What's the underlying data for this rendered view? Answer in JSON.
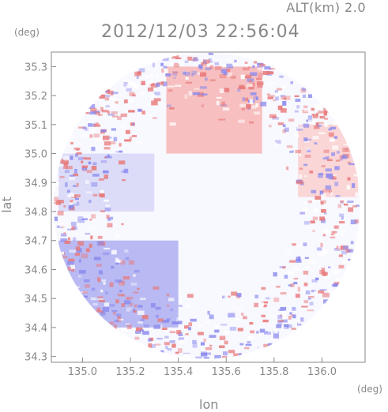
{
  "header": {
    "altitude_label": "ALT(km) 2.0",
    "timestamp": "2012/12/03 22:56:04",
    "y_unit": "(deg)",
    "x_unit": "(deg)"
  },
  "chart_data": {
    "type": "heatmap",
    "title": "2012/12/03 22:56:04",
    "xlabel": "lon",
    "ylabel": "lat",
    "xlim": [
      134.87,
      136.18
    ],
    "ylim": [
      34.28,
      35.35
    ],
    "x_ticks": [
      "135.0",
      "135.2",
      "135.4",
      "135.6",
      "135.8",
      "136.0"
    ],
    "x_tick_values": [
      135.0,
      135.2,
      135.4,
      135.6,
      135.8,
      136.0
    ],
    "y_ticks": [
      "34.3",
      "34.4",
      "34.5",
      "34.6",
      "34.7",
      "34.8",
      "34.9",
      "35.0",
      "35.1",
      "35.2",
      "35.3"
    ],
    "y_tick_values": [
      34.3,
      34.4,
      34.5,
      34.6,
      34.7,
      34.8,
      34.9,
      35.0,
      35.1,
      35.2,
      35.3
    ],
    "radar_center": {
      "lon": 135.52,
      "lat": 34.82
    },
    "radar_radius_deg_lon": 0.64,
    "colors": {
      "positive": "#f08080",
      "negative": "#8080e8",
      "neutral": "#f8f8ff",
      "axis": "#888888"
    },
    "regions": [
      {
        "name": "positive-north",
        "lon": [
          135.35,
          135.75
        ],
        "lat": [
          35.0,
          35.3
        ],
        "value": 0.55
      },
      {
        "name": "negative-southwest",
        "lon": [
          134.9,
          135.4
        ],
        "lat": [
          34.4,
          34.7
        ],
        "value": -0.6
      },
      {
        "name": "negative-west",
        "lon": [
          134.9,
          135.3
        ],
        "lat": [
          34.8,
          35.0
        ],
        "value": -0.3
      },
      {
        "name": "positive-east",
        "lon": [
          135.9,
          136.15
        ],
        "lat": [
          34.85,
          35.1
        ],
        "value": 0.35
      }
    ],
    "grid": false
  }
}
